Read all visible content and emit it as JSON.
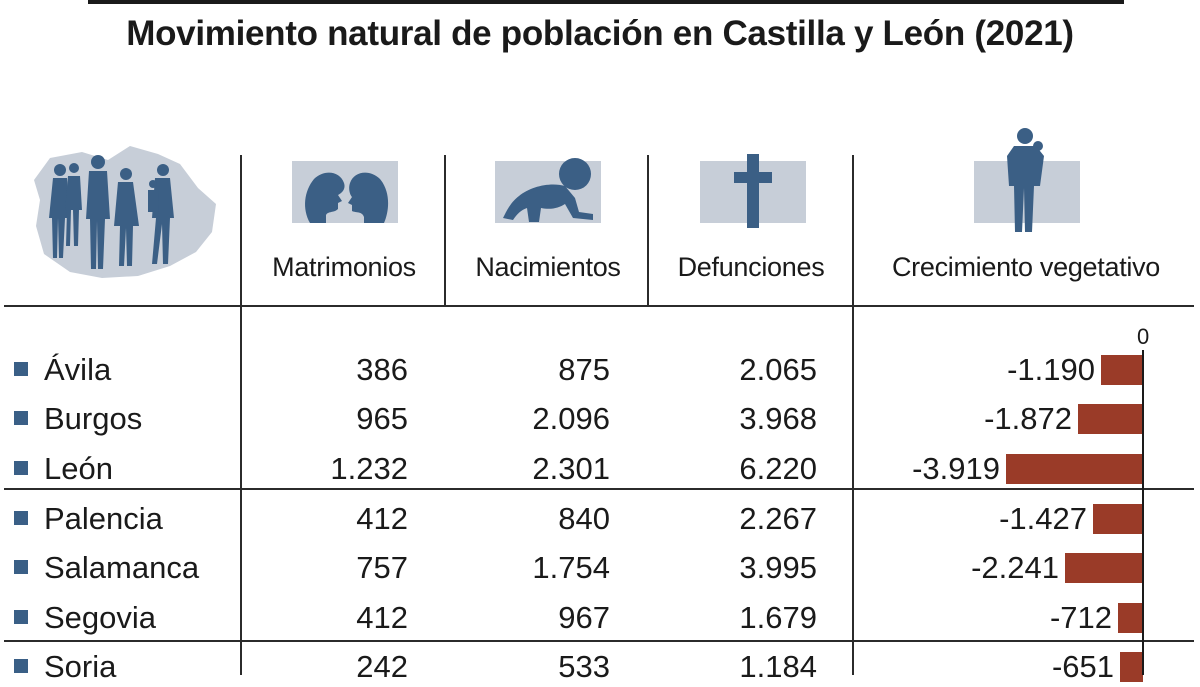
{
  "title": "Movimiento natural de población en Castilla y León (2021)",
  "columns": {
    "matrimonios": "Matrimonios",
    "nacimientos": "Nacimientos",
    "defunciones": "Defunciones",
    "crecimiento": "Crecimiento vegetativo"
  },
  "zero_label": "0",
  "colors": {
    "bar": "#9a3b28",
    "bullet": "#3a5f86",
    "icon_box": "#c7ced8",
    "icon": "#3b5f85"
  },
  "icons": {
    "header": "people-on-map-icon",
    "matrimonios": "couple-faces-icon",
    "nacimientos": "crawling-baby-icon",
    "defunciones": "cross-icon",
    "crecimiento": "adult-holding-child-icon"
  },
  "rows": [
    {
      "province": "Ávila",
      "matrimonios": "386",
      "nacimientos": "875",
      "defunciones": "2.065",
      "crecimiento_label": "-1.190",
      "crecimiento": -1190
    },
    {
      "province": "Burgos",
      "matrimonios": "965",
      "nacimientos": "2.096",
      "defunciones": "3.968",
      "crecimiento_label": "-1.872",
      "crecimiento": -1872
    },
    {
      "province": "León",
      "matrimonios": "1.232",
      "nacimientos": "2.301",
      "defunciones": "6.220",
      "crecimiento_label": "-3.919",
      "crecimiento": -3919
    },
    {
      "province": "Palencia",
      "matrimonios": "412",
      "nacimientos": "840",
      "defunciones": "2.267",
      "crecimiento_label": "-1.427",
      "crecimiento": -1427
    },
    {
      "province": "Salamanca",
      "matrimonios": "757",
      "nacimientos": "1.754",
      "defunciones": "3.995",
      "crecimiento_label": "-2.241",
      "crecimiento": -2241
    },
    {
      "province": "Segovia",
      "matrimonios": "412",
      "nacimientos": "967",
      "defunciones": "1.679",
      "crecimiento_label": "-712",
      "crecimiento": -712
    },
    {
      "province": "Soria",
      "matrimonios": "242",
      "nacimientos": "533",
      "defunciones": "1.184",
      "crecimiento_label": "-651",
      "crecimiento": -651
    }
  ],
  "chart_data": {
    "type": "bar",
    "title": "Movimiento natural de población en Castilla y León (2021)",
    "categories": [
      "Ávila",
      "Burgos",
      "León",
      "Palencia",
      "Salamanca",
      "Segovia",
      "Soria"
    ],
    "series": [
      {
        "name": "Matrimonios",
        "values": [
          386,
          965,
          1232,
          412,
          757,
          412,
          242
        ]
      },
      {
        "name": "Nacimientos",
        "values": [
          875,
          2096,
          2301,
          840,
          1754,
          967,
          533
        ]
      },
      {
        "name": "Defunciones",
        "values": [
          2065,
          3968,
          6220,
          2267,
          3995,
          1679,
          1184
        ]
      },
      {
        "name": "Crecimiento vegetativo",
        "values": [
          -1190,
          -1872,
          -3919,
          -1427,
          -2241,
          -712,
          -651
        ]
      }
    ],
    "bar_series": "Crecimiento vegetativo",
    "xlim": [
      -3919,
      0
    ],
    "orientation": "horizontal"
  }
}
